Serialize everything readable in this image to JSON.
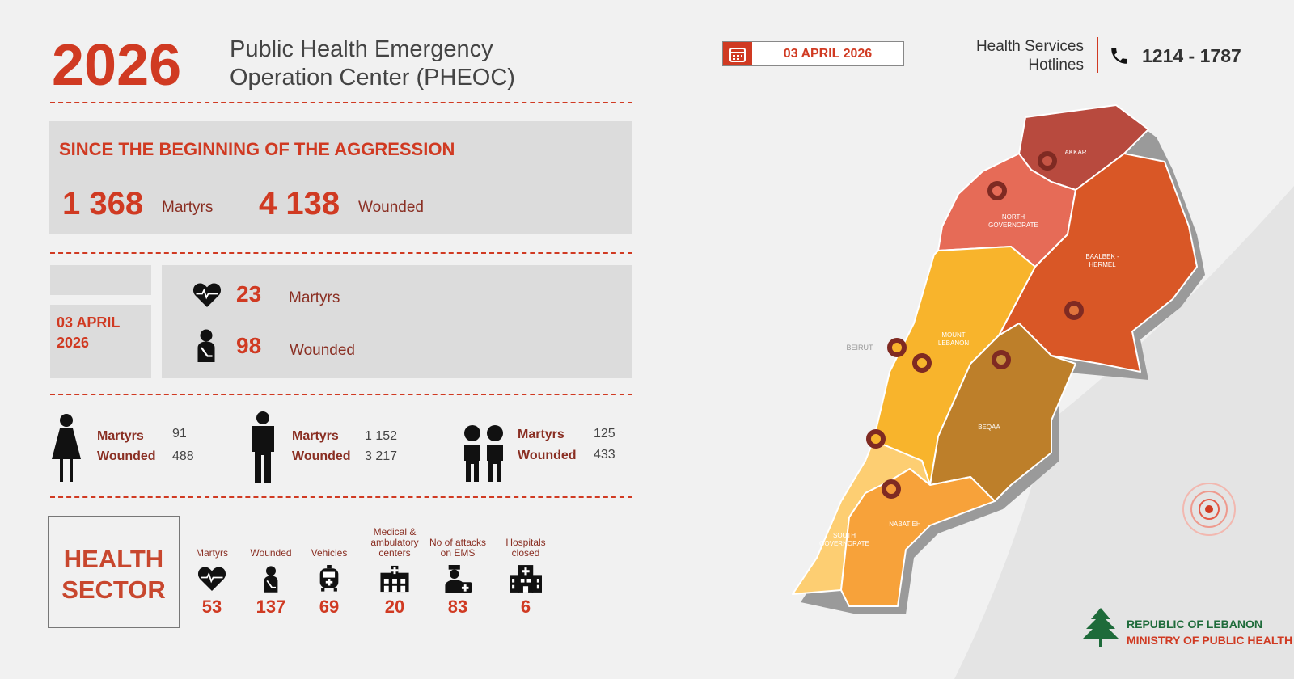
{
  "header": {
    "year": "2026",
    "title_line1": "Public Health Emergency",
    "title_line2": "Operation Center (PHEOC)",
    "date": "03 APRIL 2026",
    "hotline_label_1": "Health Services",
    "hotline_label_2": "Hotlines",
    "hotline_number": "1214 - 1787"
  },
  "cumulative": {
    "heading": "SINCE THE BEGINNING OF THE AGGRESSION",
    "martyrs_value": "1 368",
    "martyrs_label": "Martyrs",
    "wounded_value": "4 138",
    "wounded_label": "Wounded"
  },
  "daily": {
    "date_line1": "03 APRIL",
    "date_line2": "2026",
    "martyrs_value": "23",
    "martyrs_label": "Martyrs",
    "wounded_value": "98",
    "wounded_label": "Wounded"
  },
  "demographics": [
    {
      "group": "women",
      "martyrs_label": "Martyrs",
      "martyrs": "91",
      "wounded_label": "Wounded",
      "wounded": "488"
    },
    {
      "group": "men",
      "martyrs_label": "Martyrs",
      "martyrs": "1 152",
      "wounded_label": "Wounded",
      "wounded": "3 217"
    },
    {
      "group": "children",
      "martyrs_label": "Martyrs",
      "martyrs": "125",
      "wounded_label": "Wounded",
      "wounded": "433"
    }
  ],
  "health_sector": {
    "title_1": "HEALTH",
    "title_2": "SECTOR",
    "items": [
      {
        "label": "Martyrs",
        "value": "53",
        "icon": "heart-pulse-icon"
      },
      {
        "label": "Wounded",
        "value": "137",
        "icon": "injured-person-icon"
      },
      {
        "label": "Vehicles",
        "value": "69",
        "icon": "ambulance-icon"
      },
      {
        "label": "Medical & ambulatory centers",
        "value": "20",
        "icon": "clinic-icon"
      },
      {
        "label": "No of attacks on EMS",
        "value": "83",
        "icon": "paramedic-icon"
      },
      {
        "label": "Hospitals closed",
        "value": "6",
        "icon": "hospital-icon"
      }
    ]
  },
  "map": {
    "regions": [
      "AKKAR",
      "NORTH",
      "GOVERNORATE",
      "BAALBEK -",
      "HERMEL",
      "MOUNT",
      "LEBANON",
      "BEQAA",
      "NABATIEH",
      "SOUTH",
      "GOVERNORATE"
    ],
    "city": "BEIRUT",
    "colors": {
      "akkar": "#b84a3e",
      "north": "#e66b57",
      "baalbek": "#d95726",
      "mount": "#f8b42c",
      "beqaa": "#bd7f2a",
      "south": "#fdce72",
      "nabatieh": "#f7a23a",
      "marker": "#7f2a22"
    }
  },
  "logo": {
    "line1": "REPUBLIC OF LEBANON",
    "line2": "MINISTRY OF PUBLIC HEALTH"
  }
}
